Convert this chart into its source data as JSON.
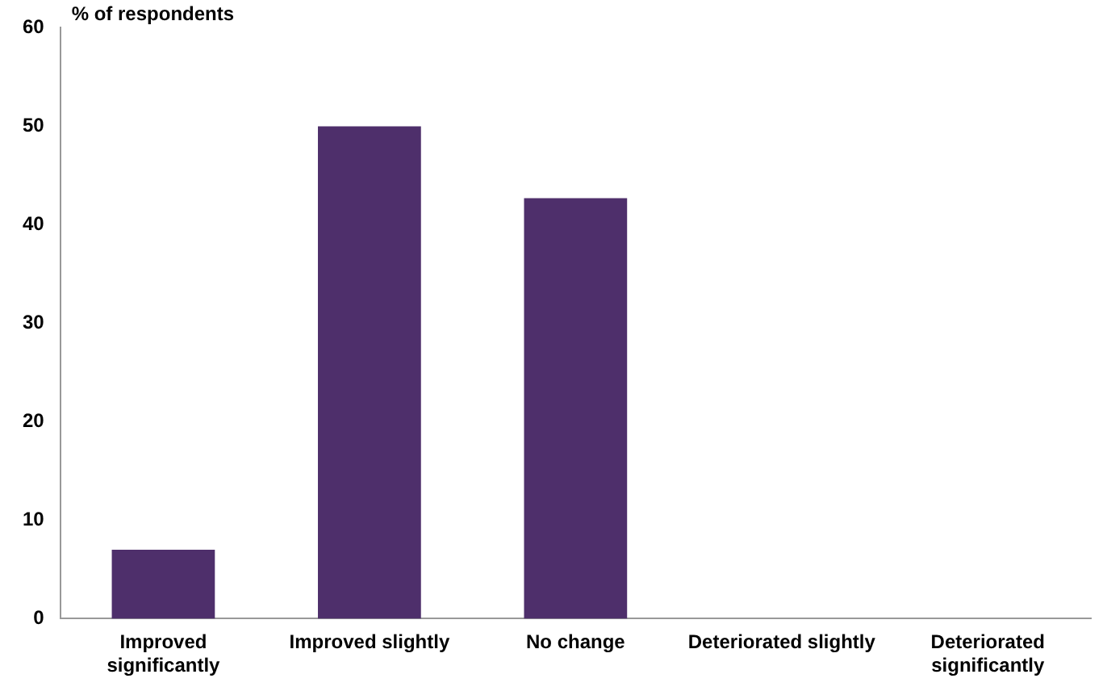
{
  "chart_data": {
    "type": "bar",
    "ylabel": "% of respondents",
    "categories": [
      [
        "Improved",
        "significantly"
      ],
      "Improved slightly",
      "No change",
      "Deteriorated slightly",
      [
        "Deteriorated",
        "significantly"
      ]
    ],
    "values": [
      7,
      50,
      42.7,
      0,
      0
    ],
    "color": "#4e2f6b",
    "ylim": [
      0,
      60
    ],
    "yticks": [
      0,
      10,
      20,
      30,
      40,
      50,
      60
    ],
    "grid": false,
    "legend": false
  }
}
